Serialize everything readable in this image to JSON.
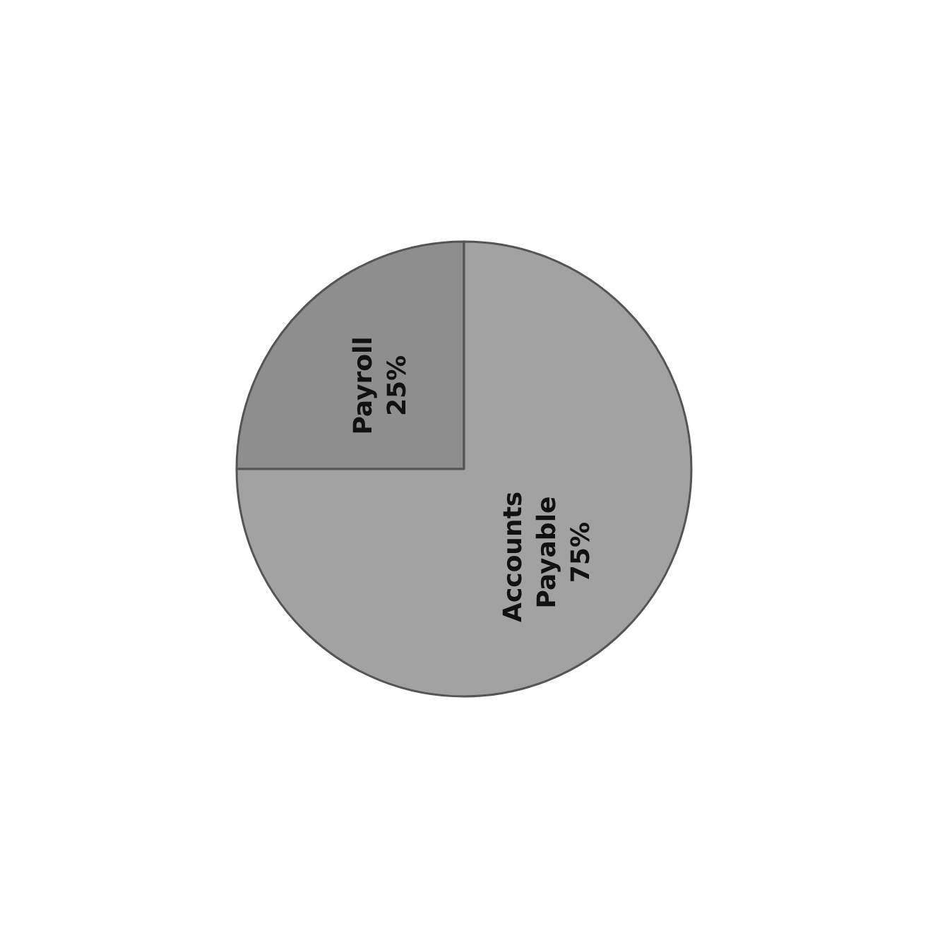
{
  "chart_data": {
    "type": "pie",
    "categories": [
      "Payroll",
      "Accounts Payable"
    ],
    "values": [
      25,
      75
    ],
    "value_labels": [
      "25%",
      "75%"
    ],
    "colors": [
      "#8e8e8e",
      "#a2a2a2"
    ],
    "legend": false
  }
}
